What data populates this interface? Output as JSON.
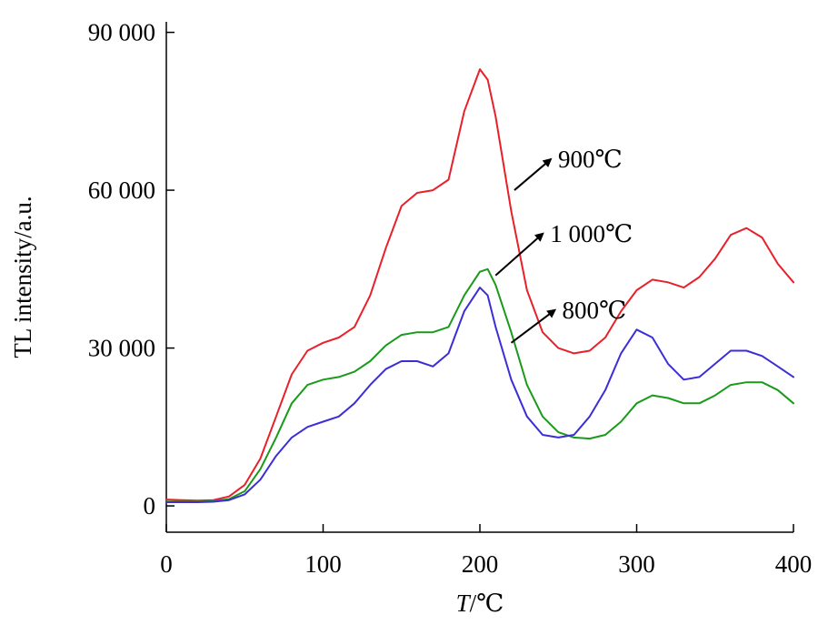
{
  "chart_data": {
    "type": "line",
    "xlabel_italic": "T",
    "xlabel_unit": "/℃",
    "ylabel": "TL intensity/a.u.",
    "xlim": [
      0,
      400
    ],
    "ylim": [
      -5000,
      92000
    ],
    "x_ticks": [
      0,
      100,
      200,
      300,
      400
    ],
    "x_tick_labels": [
      "0",
      "100",
      "200",
      "300",
      "400"
    ],
    "y_ticks": [
      0,
      30000,
      60000,
      90000
    ],
    "y_tick_labels": [
      "0",
      "30 000",
      "60 000",
      "90 000"
    ],
    "grid": false,
    "series": [
      {
        "name": "900℃",
        "color": "#e8202a",
        "x": [
          0,
          10,
          20,
          30,
          40,
          50,
          60,
          70,
          80,
          90,
          100,
          110,
          120,
          130,
          140,
          150,
          160,
          170,
          180,
          190,
          200,
          205,
          210,
          220,
          230,
          240,
          250,
          260,
          270,
          280,
          290,
          300,
          310,
          320,
          330,
          340,
          350,
          360,
          370,
          380,
          390,
          400
        ],
        "y": [
          1200,
          1100,
          1000,
          1100,
          1800,
          4000,
          9000,
          17000,
          25000,
          29500,
          31000,
          32000,
          34000,
          40000,
          49000,
          57000,
          59500,
          60000,
          62000,
          75000,
          83000,
          81000,
          74000,
          56000,
          41000,
          33000,
          30000,
          29000,
          29500,
          32000,
          37000,
          41000,
          43000,
          42500,
          41500,
          43500,
          47000,
          51500,
          52800,
          51000,
          46000,
          42500
        ]
      },
      {
        "name": "1 000℃",
        "color": "#1a9a1a",
        "x": [
          0,
          10,
          20,
          30,
          40,
          50,
          60,
          70,
          80,
          90,
          100,
          110,
          120,
          130,
          140,
          150,
          160,
          170,
          180,
          190,
          200,
          205,
          210,
          220,
          230,
          240,
          250,
          260,
          270,
          280,
          290,
          300,
          310,
          320,
          330,
          340,
          350,
          360,
          370,
          380,
          390,
          400
        ],
        "y": [
          800,
          800,
          800,
          900,
          1300,
          2800,
          7000,
          13000,
          19500,
          23000,
          24000,
          24500,
          25500,
          27500,
          30500,
          32500,
          33000,
          33000,
          34000,
          40000,
          44500,
          45000,
          42000,
          33000,
          23000,
          17000,
          14000,
          13000,
          12800,
          13500,
          16000,
          19500,
          21000,
          20500,
          19500,
          19500,
          21000,
          23000,
          23500,
          23500,
          22000,
          19500
        ]
      },
      {
        "name": "800℃",
        "color": "#3b2ed8",
        "x": [
          0,
          10,
          20,
          30,
          40,
          50,
          60,
          70,
          80,
          90,
          100,
          110,
          120,
          130,
          140,
          150,
          160,
          170,
          180,
          190,
          200,
          205,
          210,
          220,
          230,
          240,
          250,
          260,
          270,
          280,
          290,
          300,
          310,
          320,
          330,
          340,
          350,
          360,
          370,
          380,
          390,
          400
        ],
        "y": [
          700,
          700,
          700,
          800,
          1100,
          2200,
          5000,
          9500,
          13000,
          15000,
          16000,
          17000,
          19500,
          23000,
          26000,
          27500,
          27500,
          26500,
          29000,
          37000,
          41500,
          40000,
          34000,
          24000,
          17000,
          13500,
          13000,
          13500,
          17000,
          22000,
          29000,
          33500,
          32000,
          27000,
          24000,
          24500,
          27000,
          29500,
          29500,
          28500,
          26500,
          24500
        ]
      }
    ],
    "annotations": [
      {
        "text": "900℃",
        "series": "900℃",
        "point_x": 222,
        "point_y": 60000
      },
      {
        "text": "1 000℃",
        "series": "1 000℃",
        "point_x": 210,
        "point_y": 43800
      },
      {
        "text": "800℃",
        "series": "800℃",
        "point_x": 220,
        "point_y": 31000
      }
    ]
  }
}
